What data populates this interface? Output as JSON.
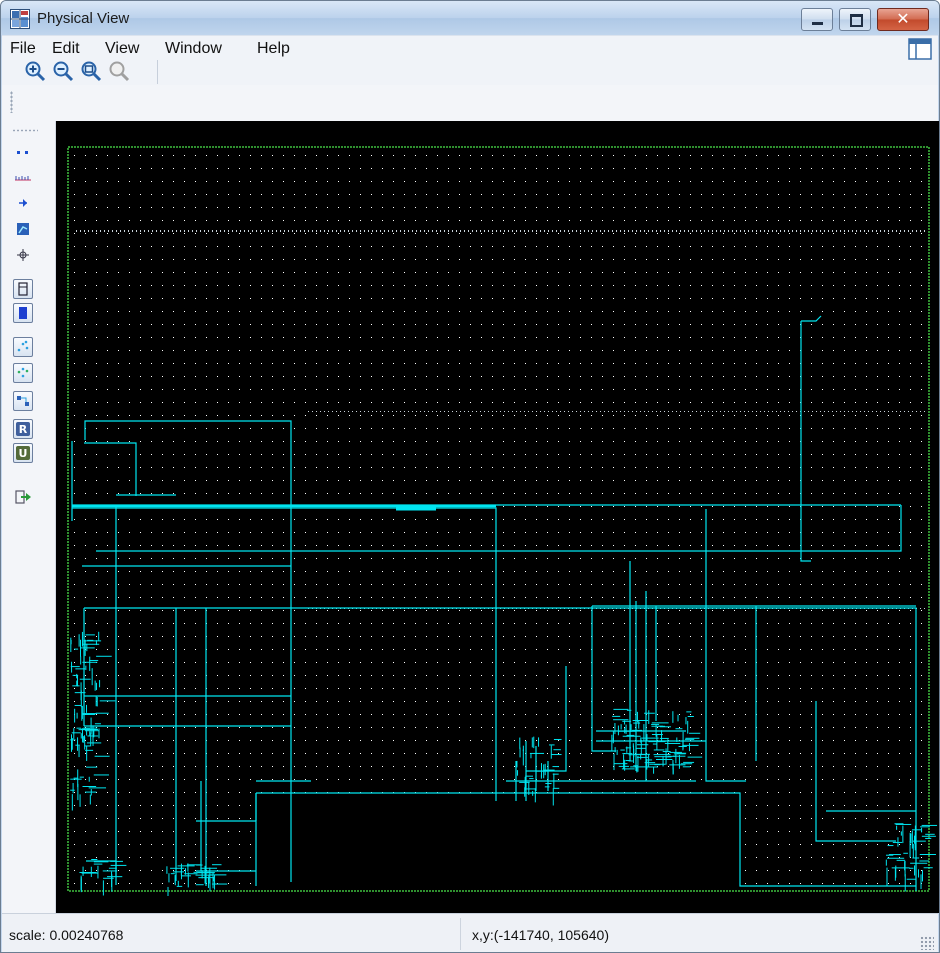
{
  "window": {
    "title": "Physical View",
    "app_icon": "grid-layout-icon",
    "controls": {
      "minimize_icon": "minimize-icon",
      "maximize_icon": "maximize-icon",
      "close_icon": "close-icon",
      "close_glyph": "✕"
    }
  },
  "menu": {
    "items": [
      "File",
      "Edit",
      "View",
      "Window",
      "Help"
    ],
    "right_icon": "panel-layout-icon"
  },
  "toolbar": {
    "items": [
      {
        "name": "zoom-in-icon"
      },
      {
        "name": "zoom-out-icon"
      },
      {
        "name": "zoom-fit-icon"
      },
      {
        "name": "zoom-disabled-icon"
      }
    ]
  },
  "side_toolbar": {
    "items": [
      {
        "name": "pins-icon"
      },
      {
        "name": "ruler-icon"
      },
      {
        "name": "arrow-left-icon"
      },
      {
        "name": "route-icon"
      },
      {
        "name": "crosshair-icon"
      },
      {
        "name": "cell-outline-icon"
      },
      {
        "name": "cell-filled-icon"
      },
      {
        "name": "net-scatter-icon"
      },
      {
        "name": "net-cluster-icon"
      },
      {
        "name": "net-connect-icon"
      },
      {
        "name": "r-toggle-icon"
      },
      {
        "name": "u-toggle-icon"
      },
      {
        "name": "export-icon"
      }
    ]
  },
  "canvas": {
    "background": "#000000",
    "grid_color": "#ffffff",
    "wire_color": "#00e5f0",
    "boundary_color": "#3fbf3f"
  },
  "status": {
    "scale": "scale: 0.00240768",
    "coords": "x,y:(-141740, 105640)"
  }
}
